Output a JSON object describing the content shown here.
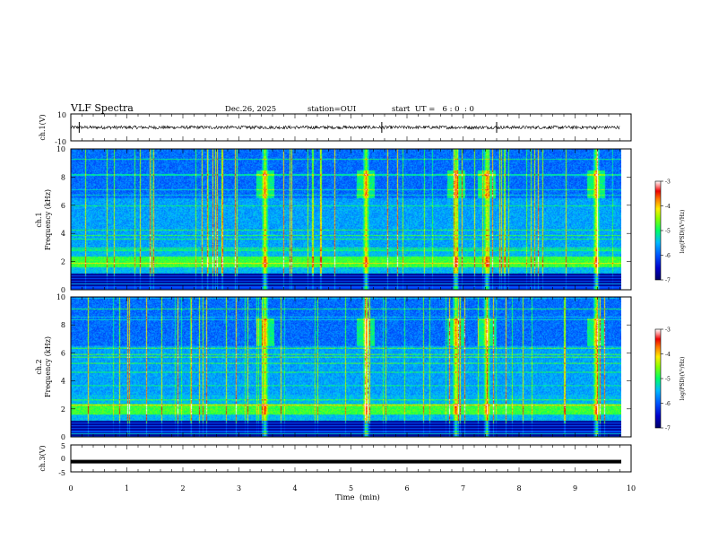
{
  "header": {
    "title": "VLF Spectra",
    "date": "Dec.26, 2025",
    "station": "station=OUI",
    "start_ut": "start  UT =   6 : 0  : 0"
  },
  "chart_data": [
    {
      "type": "line",
      "name": "ch1-waveform",
      "ylabel": "ch.1(V)",
      "ylim": [
        -10,
        10
      ],
      "yticks": [
        "10",
        "-10"
      ],
      "xlim": [
        0,
        10
      ],
      "description_values": {
        "baseline": 0,
        "noise_amplitude": 1.2,
        "spikes_at_min": [
          0.15,
          5.55,
          7.6
        ]
      }
    },
    {
      "type": "heatmap",
      "name": "ch1-spectrogram",
      "ylabel": "ch.1\nFrequency (kHz)",
      "ylabel_lines": [
        "ch.1",
        "Frequency (kHz)"
      ],
      "ylim": [
        0,
        10
      ],
      "yticks": [
        "0",
        "2",
        "4",
        "6",
        "8",
        "10"
      ],
      "xlim": [
        0,
        10
      ],
      "data_end_min": 9.8,
      "strong_band_khz": [
        1.6,
        2.4
      ],
      "intense_events_min": [
        3.45,
        5.25,
        6.85,
        7.4,
        9.35
      ],
      "colorbar": {
        "label": "log(PSD)(V²/Hz)",
        "ticks": [
          "-3",
          "-4",
          "-5",
          "-6",
          "-7"
        ],
        "range": [
          -7,
          -3
        ]
      }
    },
    {
      "type": "heatmap",
      "name": "ch2-spectrogram",
      "ylabel": "ch.2\nFrequency (kHz)",
      "ylabel_lines": [
        "ch.2",
        "Frequency (kHz)"
      ],
      "ylim": [
        0,
        10
      ],
      "yticks": [
        "0",
        "2",
        "4",
        "6",
        "8",
        "10"
      ],
      "xlim": [
        0,
        10
      ],
      "data_end_min": 9.8,
      "strong_band_khz": [
        1.6,
        2.4
      ],
      "intense_events_min": [
        3.45,
        5.25,
        6.85,
        7.4,
        9.35
      ],
      "colorbar": {
        "label": "log(PSD)(V²/Hz)",
        "ticks": [
          "-3",
          "-4",
          "-5",
          "-6",
          "-7"
        ],
        "range": [
          -7,
          -3
        ]
      }
    },
    {
      "type": "line",
      "name": "ch3-waveform",
      "ylabel": "ch.3(V)",
      "ylim": [
        -5,
        5
      ],
      "yticks": [
        "5",
        "0",
        "-5"
      ],
      "xlim": [
        0,
        10
      ],
      "description_values": {
        "level": -1.2
      }
    }
  ],
  "x_axis": {
    "label": "Time  (min)",
    "ticks": [
      "0",
      "1",
      "2",
      "3",
      "4",
      "5",
      "6",
      "7",
      "8",
      "9",
      "10"
    ]
  }
}
